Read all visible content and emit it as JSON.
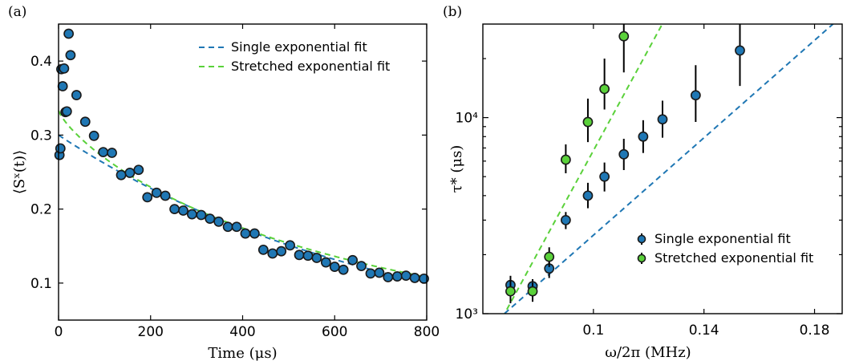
{
  "chart_data": [
    {
      "panel_label": "(a)",
      "type": "scatter",
      "xlabel": "Time (μs)",
      "ylabel": "⟨Sˣ(t)⟩",
      "xlim": [
        0,
        800
      ],
      "ylim": [
        0.05,
        0.45
      ],
      "xticks": [
        0,
        200,
        400,
        600,
        800
      ],
      "xtick_labels": [
        "0",
        "200",
        "400",
        "600",
        "800"
      ],
      "yticks": [
        0.1,
        0.2,
        0.3,
        0.4
      ],
      "ytick_labels": [
        "0.1",
        "0.2",
        "0.3",
        "0.4"
      ],
      "legend": "top-right",
      "colors": {
        "marker": "#1f77b4",
        "single_fit": "#1f77b4",
        "stretched_fit": "#5ad13a"
      },
      "points": [
        [
          2,
          0.273
        ],
        [
          4,
          0.282
        ],
        [
          6,
          0.389
        ],
        [
          9,
          0.366
        ],
        [
          12,
          0.39
        ],
        [
          15,
          0.331
        ],
        [
          18,
          0.332
        ],
        [
          22,
          0.437
        ],
        [
          26,
          0.408
        ],
        [
          39,
          0.354
        ],
        [
          58,
          0.318
        ],
        [
          77,
          0.299
        ],
        [
          97,
          0.277
        ],
        [
          116,
          0.276
        ],
        [
          136,
          0.246
        ],
        [
          155,
          0.249
        ],
        [
          174,
          0.253
        ],
        [
          193,
          0.216
        ],
        [
          213,
          0.222
        ],
        [
          232,
          0.218
        ],
        [
          252,
          0.2
        ],
        [
          271,
          0.198
        ],
        [
          290,
          0.193
        ],
        [
          310,
          0.192
        ],
        [
          329,
          0.187
        ],
        [
          348,
          0.183
        ],
        [
          368,
          0.176
        ],
        [
          387,
          0.176
        ],
        [
          406,
          0.167
        ],
        [
          426,
          0.167
        ],
        [
          445,
          0.145
        ],
        [
          465,
          0.14
        ],
        [
          484,
          0.143
        ],
        [
          503,
          0.151
        ],
        [
          523,
          0.138
        ],
        [
          542,
          0.137
        ],
        [
          561,
          0.134
        ],
        [
          581,
          0.128
        ],
        [
          600,
          0.122
        ],
        [
          619,
          0.118
        ],
        [
          639,
          0.131
        ],
        [
          658,
          0.123
        ],
        [
          678,
          0.113
        ],
        [
          697,
          0.114
        ],
        [
          716,
          0.108
        ],
        [
          736,
          0.109
        ],
        [
          755,
          0.11
        ],
        [
          774,
          0.107
        ],
        [
          794,
          0.106
        ]
      ],
      "fits": [
        {
          "name": "Single exponential fit",
          "style": "dashed",
          "model": "single",
          "A": 0.3,
          "tau": 730
        },
        {
          "name": "Stretched exponential fit",
          "style": "dashed",
          "model": "stretched",
          "A": 0.333,
          "tau": 690,
          "beta": 0.8
        }
      ]
    },
    {
      "panel_label": "(b)",
      "type": "scatter",
      "xlabel": "ω/2π (MHz)",
      "ylabel": "τ* (μs)",
      "xscale": "linear",
      "yscale": "log",
      "xlim": [
        0.06,
        0.19
      ],
      "ylim": [
        1000,
        30000
      ],
      "xticks": [
        0.1,
        0.14,
        0.18
      ],
      "xtick_labels": [
        "0.1",
        "0.14",
        "0.18"
      ],
      "yticks": [
        1000,
        10000
      ],
      "ytick_labels": [
        "10³",
        "10⁴"
      ],
      "legend": "bottom-right",
      "colors": {
        "single": "#1f77b4",
        "stretched": "#5ad13a"
      },
      "series": [
        {
          "name": "Single exponential fit",
          "x": [
            0.07,
            0.078,
            0.084,
            0.09,
            0.098,
            0.104,
            0.111,
            0.118,
            0.125,
            0.137,
            0.153
          ],
          "y": [
            1400,
            1380,
            1700,
            3000,
            4000,
            5000,
            6500,
            8000,
            9800,
            13000,
            22000
          ],
          "err_low": [
            1250,
            1240,
            1520,
            2700,
            3450,
            4200,
            5400,
            6600,
            7900,
            9500,
            14500
          ],
          "err_high": [
            1560,
            1500,
            1880,
            3300,
            4650,
            5900,
            7800,
            9700,
            12200,
            18500,
            32000
          ],
          "fit": {
            "x": [
              0.06,
              0.19
            ],
            "y": [
              800,
              33000
            ]
          }
        },
        {
          "name": "Stretched exponential fit",
          "x": [
            0.07,
            0.078,
            0.084,
            0.09,
            0.098,
            0.104,
            0.111
          ],
          "y": [
            1300,
            1300,
            1950,
            6100,
            9500,
            14000,
            26000
          ],
          "err_low": [
            1130,
            1150,
            1730,
            5200,
            7500,
            11000,
            17000
          ],
          "err_high": [
            1480,
            1440,
            2180,
            7300,
            12500,
            20000,
            32000
          ],
          "fit": {
            "x": [
              0.067,
              0.126
            ],
            "y": [
              950,
              32000
            ]
          }
        }
      ]
    }
  ]
}
